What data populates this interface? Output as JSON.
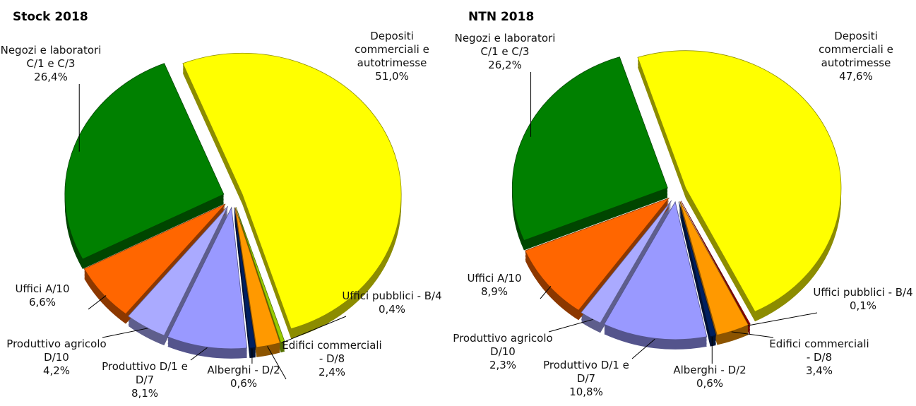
{
  "chart_data": [
    {
      "type": "pie",
      "title": "Stock 2018",
      "categories": [
        "Depositi commerciali e autotrimesse",
        "Uffici pubblici - B/4",
        "Edifici commerciali - D/8",
        "Alberghi - D/2",
        "Produttivo D/1 e D/7",
        "Produttivo agricolo D/10",
        "Uffici A/10",
        "Negozi e laboratori C/1 e C/3"
      ],
      "values": [
        51.0,
        0.4,
        2.4,
        0.6,
        8.1,
        4.2,
        6.6,
        26.4
      ],
      "value_labels": [
        "51,0%",
        "0,4%",
        "2,4%",
        "0,6%",
        "8,1%",
        "4,2%",
        "6,6%",
        "26,4%"
      ],
      "colors": [
        "#ffff00",
        "#99cc00",
        "#ff9900",
        "#002060",
        "#9999ff",
        "#aaaaff",
        "#ff6600",
        "#008000"
      ]
    },
    {
      "type": "pie",
      "title": "NTN 2018",
      "categories": [
        "Depositi commerciali e autotrimesse",
        "Uffici pubblici - B/4",
        "Edifici commerciali - D/8",
        "Alberghi - D/2",
        "Produttivo D/1 e D/7",
        "Produttivo agricolo D/10",
        "Uffici A/10",
        "Negozi e laboratori C/1 e C/3"
      ],
      "values": [
        47.6,
        0.1,
        3.4,
        0.6,
        10.8,
        2.3,
        8.9,
        26.2
      ],
      "value_labels": [
        "47,6%",
        "0,1%",
        "3,4%",
        "0,6%",
        "10,8%",
        "2,3%",
        "8,9%",
        "26,2%"
      ],
      "colors": [
        "#ffff00",
        "#c00000",
        "#ff9900",
        "#002060",
        "#9999ff",
        "#aaaaff",
        "#ff6600",
        "#008000"
      ]
    }
  ]
}
